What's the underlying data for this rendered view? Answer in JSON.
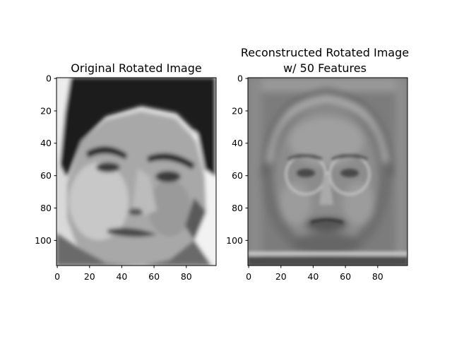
{
  "chart_data": [
    {
      "type": "image",
      "title": "Original Rotated Image",
      "xlim": [
        -0.5,
        98.5
      ],
      "ylim": [
        115.5,
        -0.5
      ],
      "xticks": [
        0,
        20,
        40,
        60,
        80
      ],
      "yticks": [
        0,
        20,
        40,
        60,
        80,
        100
      ],
      "xticklabels": [
        "0",
        "20",
        "40",
        "60",
        "80"
      ],
      "yticklabels": [
        "0",
        "20",
        "40",
        "60",
        "80",
        "100"
      ],
      "colormap": "gray",
      "image_content": "grayscale photograph of a man's face, slightly rotated"
    },
    {
      "type": "image",
      "title_lines": [
        "Reconstructed Rotated Image",
        "w/ 50 Features"
      ],
      "xlim": [
        -0.5,
        98.5
      ],
      "ylim": [
        115.5,
        -0.5
      ],
      "xticks": [
        0,
        20,
        40,
        60,
        80
      ],
      "yticks": [
        0,
        20,
        40,
        60,
        80,
        100
      ],
      "xticklabels": [
        "0",
        "20",
        "40",
        "60",
        "80"
      ],
      "yticklabels": [
        "0",
        "20",
        "40",
        "60",
        "80",
        "100"
      ],
      "colormap": "gray",
      "image_content": "blurry grayscale reconstruction of a face with glasses-like circles"
    }
  ]
}
